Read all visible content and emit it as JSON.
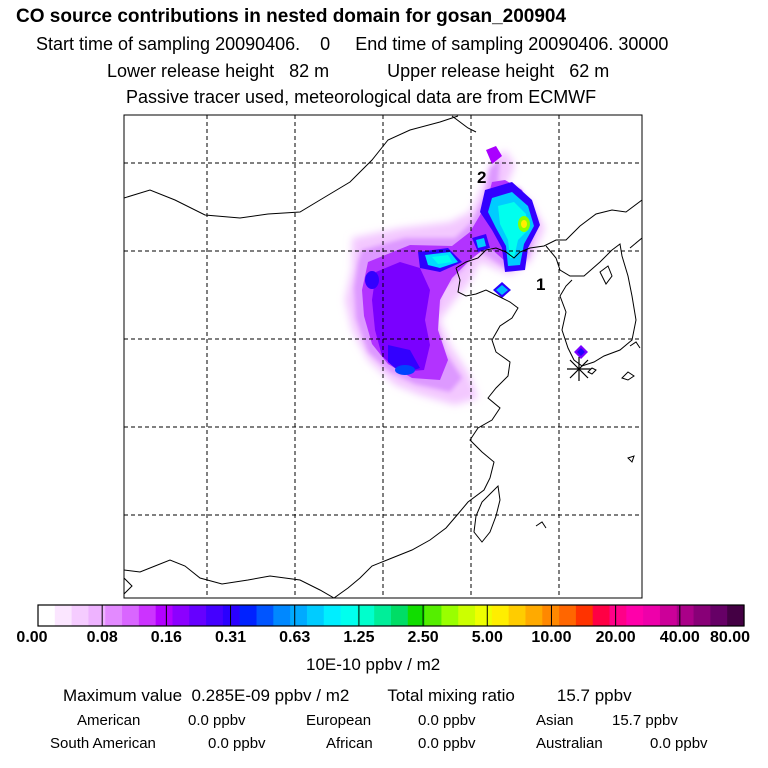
{
  "header": {
    "title": "CO  source contributions in nested domain for gosan_200904",
    "start_label": "Start time of sampling 20090406.",
    "start_val": "0",
    "end_label": "End time of sampling 20090406. 30000",
    "lower_label": "Lower release height",
    "lower_val": "82 m",
    "upper_label": "Upper release height",
    "upper_val": "62 m",
    "tracer_line": "Passive tracer used, meteorological data are from ECMWF"
  },
  "map": {
    "markers": [
      {
        "label": "1"
      },
      {
        "label": "2"
      }
    ],
    "receptor_symbol": "asterisk-marker"
  },
  "colorbar": {
    "ticks": [
      "0.00",
      "0.08",
      "0.16",
      "0.31",
      "0.63",
      "1.25",
      "2.50",
      "5.00",
      "10.00",
      "20.00",
      "40.00",
      "80.00"
    ],
    "unit": "10E-10 ppbv / m2",
    "colors": [
      "#ffffff",
      "#fbe6ff",
      "#f5ccff",
      "#eeb3ff",
      "#e38aff",
      "#d966ff",
      "#cc33ff",
      "#b300ff",
      "#8c00ff",
      "#6600ff",
      "#4400ff",
      "#2a00ff",
      "#0022ff",
      "#0055ff",
      "#0088ff",
      "#00aaff",
      "#00ccff",
      "#00eeff",
      "#00ffee",
      "#00ffcc",
      "#00ee99",
      "#00dd66",
      "#11dd00",
      "#55ee00",
      "#99ff00",
      "#ccff00",
      "#eeff00",
      "#ffee00",
      "#ffcc00",
      "#ffaa00",
      "#ff8800",
      "#ff6600",
      "#ff3300",
      "#ff0044",
      "#ff0088",
      "#ff00aa",
      "#ee00aa",
      "#cc0099",
      "#aa0088",
      "#880077",
      "#660066",
      "#440044"
    ]
  },
  "summary": {
    "max_label": "Maximum value",
    "max_val": "0.285E-09 ppbv / m2",
    "total_label": "Total mixing ratio",
    "total_val": "15.7 ppbv",
    "regions": [
      {
        "name": "American",
        "value": "0.0 ppbv"
      },
      {
        "name": "European",
        "value": "0.0 ppbv"
      },
      {
        "name": "Asian",
        "value": "15.7 ppbv"
      },
      {
        "name": "South American",
        "value": "0.0 ppbv"
      },
      {
        "name": "African",
        "value": "0.0 ppbv"
      },
      {
        "name": "Australian",
        "value": "0.0 ppbv"
      }
    ]
  }
}
